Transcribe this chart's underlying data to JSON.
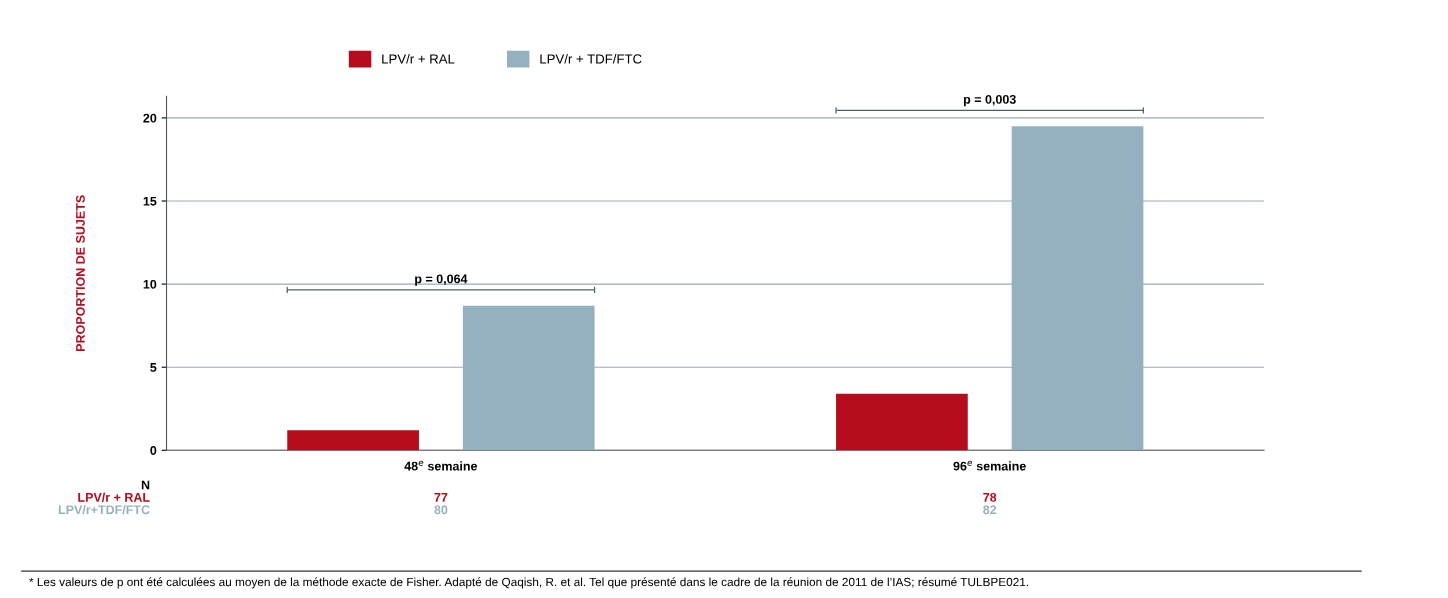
{
  "chart_data": {
    "type": "bar",
    "ylabel": "PROPORTION DE SUJETS",
    "categories": [
      "48$^{e}$ semaine",
      "96$^{e}$ semaine"
    ],
    "series": [
      {
        "name": "LPV/r + RAL",
        "color": "#b50d1e",
        "values": [
          1.2,
          3.4
        ]
      },
      {
        "name": "LPV/r + TDF/FTC",
        "color": "#95b0be",
        "values": [
          8.7,
          19.5
        ]
      }
    ],
    "ylim": [
      0,
      21.3
    ],
    "yticks": [
      0,
      5,
      10,
      15,
      20
    ],
    "grid": "y",
    "legend": "top",
    "annotations": [
      "p = 0,064",
      "p = 0,003",
      "N",
      "LPV/r + RAL",
      "77",
      "78",
      "LPV/r+TDF/FTC",
      "80",
      "82",
      "* Les valeurs de p ont été calculées au moyen de la méthode exacte de Fisher. Adapté de Qaqish, R. et al. Tel que présenté dans le cadre de la réunion de 2011 de l’IAS; résumé TULBPE021."
    ]
  }
}
